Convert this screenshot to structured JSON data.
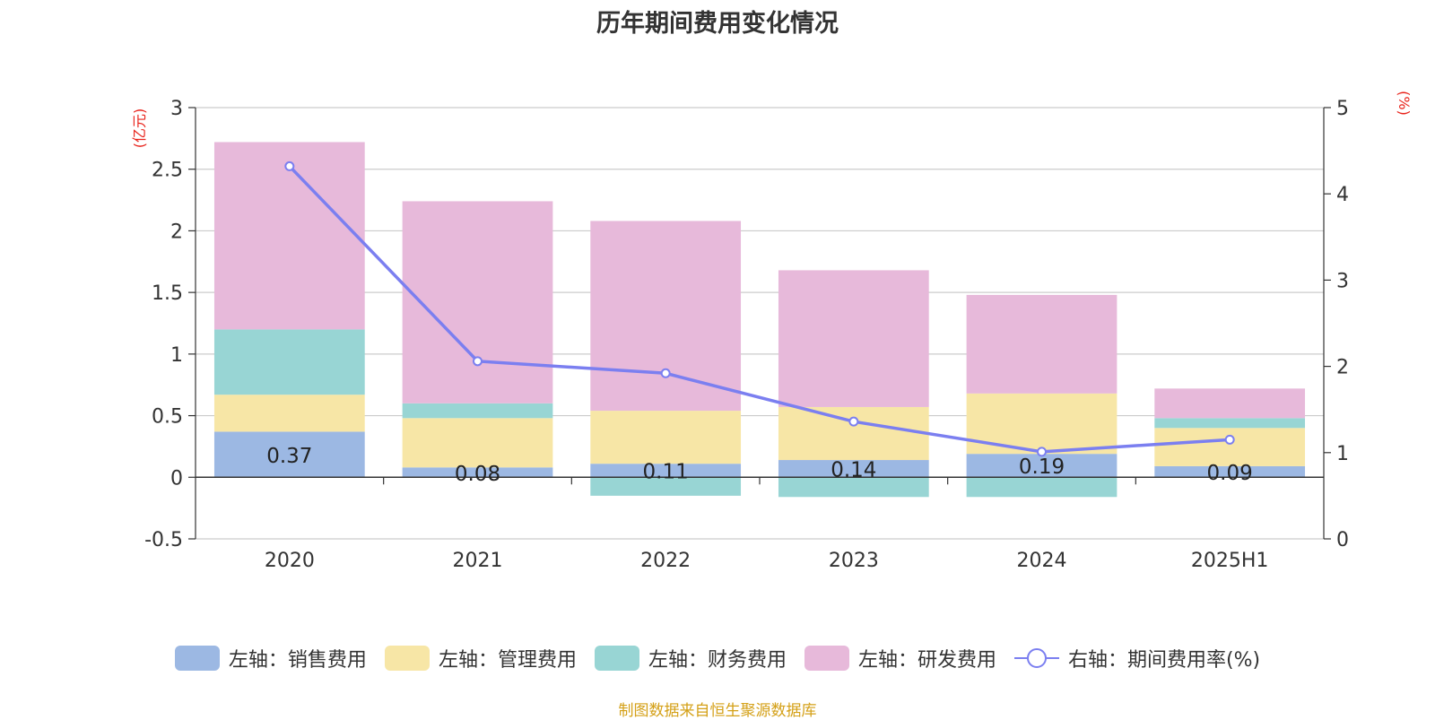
{
  "chart_data": {
    "type": "bar",
    "stacked": true,
    "title": "历年期间费用变化情况",
    "categories": [
      "2020",
      "2021",
      "2022",
      "2023",
      "2024",
      "2025H1"
    ],
    "left_axis_unit": "(亿元)",
    "right_axis_unit": "(%)",
    "ylim_left": [
      -0.5,
      3
    ],
    "yticks_left": [
      "3",
      "2.5",
      "2",
      "1.5",
      "1",
      "0.5",
      "0",
      "-0.5"
    ],
    "ylim_right": [
      0,
      5
    ],
    "yticks_right": [
      "5",
      "4",
      "3",
      "2",
      "1",
      "0"
    ],
    "grid": true,
    "legend_position": "bottom",
    "series": [
      {
        "name": "左轴：销售费用",
        "axis": "left",
        "type": "bar",
        "color": "#9cb8e3",
        "values": [
          0.37,
          0.08,
          0.11,
          0.14,
          0.19,
          0.09
        ],
        "labels": [
          "0.37",
          "0.08",
          "0.11",
          "0.14",
          "0.19",
          "0.09"
        ]
      },
      {
        "name": "左轴：管理费用",
        "axis": "left",
        "type": "bar",
        "color": "#f7e6a6",
        "values": [
          0.3,
          0.4,
          0.43,
          0.43,
          0.49,
          0.31
        ]
      },
      {
        "name": "左轴：财务费用",
        "axis": "left",
        "type": "bar",
        "color": "#98d5d4",
        "values": [
          0.53,
          0.12,
          -0.15,
          -0.16,
          -0.16,
          0.08
        ]
      },
      {
        "name": "左轴：研发费用",
        "axis": "left",
        "type": "bar",
        "color": "#e7b9da",
        "values": [
          1.52,
          1.64,
          1.54,
          1.11,
          0.8,
          0.24
        ]
      },
      {
        "name": "右轴：期间费用率(%)",
        "axis": "right",
        "type": "line",
        "color": "#7b7ff0",
        "values": [
          4.32,
          2.06,
          1.92,
          1.36,
          1.01,
          1.15
        ]
      }
    ]
  },
  "source_note": "制图数据来自恒生聚源数据库"
}
